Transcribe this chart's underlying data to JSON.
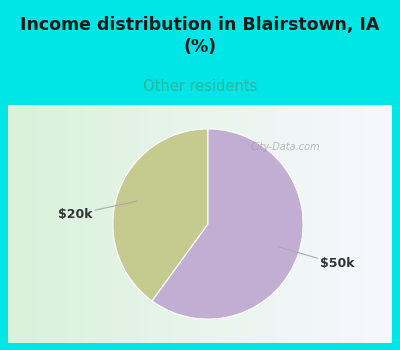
{
  "title": "Income distribution in Blairstown, IA\n(%)",
  "subtitle": "Other residents",
  "slices": [
    {
      "label": "$20k",
      "value": 40,
      "color": "#c5cb8e"
    },
    {
      "label": "$50k",
      "value": 60,
      "color": "#c3aed3"
    }
  ],
  "background_color": "#00e5e5",
  "panel_color": "#ffffff",
  "title_color": "#1a1a1a",
  "subtitle_color": "#2ab5a0",
  "label_color": "#333333",
  "label_line_color": "#aaaaaa",
  "startangle": 90,
  "watermark": "City-Data.com"
}
